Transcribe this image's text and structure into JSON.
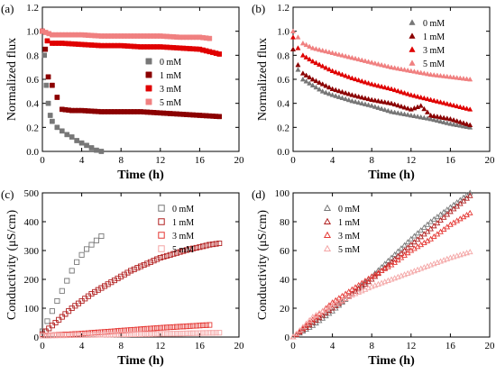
{
  "chart_data": [
    {
      "panel_label": "(a)",
      "type": "scatter",
      "marker": "square",
      "xlabel": "Time (h)",
      "ylabel": "Normalized flux",
      "xlim": [
        0,
        20
      ],
      "ylim": [
        0,
        1.2
      ],
      "xticks": [
        "0",
        "4",
        "8",
        "12",
        "16",
        "20"
      ],
      "yticks": [
        "0.0",
        "0.2",
        "0.4",
        "0.6",
        "0.8",
        "1.0",
        "1.2"
      ],
      "legend_placement": "right",
      "series": [
        {
          "name": "0 mM",
          "color": "#777777",
          "x": [
            0,
            0.2,
            0.4,
            0.6,
            0.8,
            1,
            1.5,
            2,
            2.5,
            3,
            3.5,
            4,
            4.5,
            5,
            5.5,
            6
          ],
          "y": [
            1.0,
            0.8,
            0.55,
            0.4,
            0.3,
            0.25,
            0.2,
            0.17,
            0.14,
            0.12,
            0.09,
            0.07,
            0.05,
            0.03,
            0.01,
            0.0
          ]
        },
        {
          "name": "1 mM",
          "color": "#8b0000",
          "x": [
            0,
            0.3,
            0.6,
            1,
            1.5,
            2,
            3,
            4,
            6,
            8,
            10,
            12,
            14,
            16,
            18
          ],
          "y": [
            1.0,
            0.85,
            0.62,
            0.55,
            0.45,
            0.35,
            0.34,
            0.34,
            0.33,
            0.33,
            0.33,
            0.32,
            0.31,
            0.3,
            0.29
          ]
        },
        {
          "name": "3 mM",
          "color": "#e00000",
          "x": [
            0,
            0.5,
            1,
            2,
            4,
            6,
            8,
            10,
            12,
            14,
            16,
            17,
            18
          ],
          "y": [
            1.0,
            0.92,
            0.9,
            0.9,
            0.89,
            0.88,
            0.88,
            0.87,
            0.87,
            0.86,
            0.85,
            0.83,
            0.81
          ]
        },
        {
          "name": "5 mM",
          "color": "#f08080",
          "x": [
            0,
            1,
            2,
            4,
            6,
            8,
            10,
            12,
            14,
            16,
            17
          ],
          "y": [
            1.0,
            0.97,
            0.97,
            0.97,
            0.96,
            0.96,
            0.96,
            0.96,
            0.95,
            0.95,
            0.94
          ]
        }
      ]
    },
    {
      "panel_label": "(b)",
      "type": "scatter",
      "marker": "triangle",
      "xlabel": "Time (h)",
      "ylabel": "Normalized flux",
      "xlim": [
        0,
        20
      ],
      "ylim": [
        0,
        1.2
      ],
      "xticks": [
        "0",
        "4",
        "8",
        "12",
        "16",
        "20"
      ],
      "yticks": [
        "0.0",
        "0.2",
        "0.4",
        "0.6",
        "0.8",
        "1.0",
        "1.2"
      ],
      "legend_placement": "top-right",
      "series": [
        {
          "name": "0 mM",
          "color": "#777777",
          "x": [
            0,
            0.5,
            1,
            2,
            3,
            4,
            6,
            8,
            10,
            12,
            14,
            16,
            18
          ],
          "y": [
            0.85,
            0.68,
            0.6,
            0.55,
            0.5,
            0.47,
            0.42,
            0.38,
            0.33,
            0.3,
            0.27,
            0.23,
            0.2
          ]
        },
        {
          "name": "1 mM",
          "color": "#8b0000",
          "x": [
            0,
            0.5,
            1,
            2,
            3,
            4,
            6,
            8,
            10,
            12,
            13,
            14,
            16,
            18
          ],
          "y": [
            0.85,
            0.72,
            0.65,
            0.6,
            0.56,
            0.52,
            0.47,
            0.43,
            0.4,
            0.35,
            0.38,
            0.3,
            0.27,
            0.22
          ]
        },
        {
          "name": "3 mM",
          "color": "#e00000",
          "x": [
            0,
            0.5,
            1,
            2,
            4,
            6,
            8,
            10,
            12,
            14,
            16,
            18
          ],
          "y": [
            0.95,
            0.86,
            0.8,
            0.75,
            0.67,
            0.61,
            0.56,
            0.52,
            0.47,
            0.43,
            0.39,
            0.35
          ]
        },
        {
          "name": "5 mM",
          "color": "#f08080",
          "x": [
            0,
            0.5,
            1,
            2,
            4,
            6,
            8,
            10,
            12,
            14,
            16,
            18
          ],
          "y": [
            1.0,
            0.95,
            0.9,
            0.86,
            0.82,
            0.78,
            0.74,
            0.7,
            0.67,
            0.64,
            0.62,
            0.6
          ]
        }
      ]
    },
    {
      "panel_label": "(c)",
      "type": "scatter",
      "marker": "open-square",
      "xlabel": "Time (h)",
      "ylabel": "Conductivity (μS/cm)",
      "xlim": [
        0,
        20
      ],
      "ylim": [
        0,
        500
      ],
      "xticks": [
        "0",
        "4",
        "8",
        "12",
        "16",
        "20"
      ],
      "yticks": [
        "0",
        "100",
        "200",
        "300",
        "400",
        "500"
      ],
      "legend_placement": "top-right",
      "series": [
        {
          "name": "0 mM",
          "color": "#777777",
          "x": [
            0,
            0.5,
            1,
            1.5,
            2,
            2.5,
            3,
            3.5,
            4,
            4.5,
            5,
            5.5,
            6
          ],
          "y": [
            20,
            55,
            90,
            125,
            160,
            195,
            230,
            260,
            285,
            305,
            320,
            335,
            350
          ]
        },
        {
          "name": "1 mM",
          "color": "#b22222",
          "x": [
            0,
            1,
            2,
            3,
            4,
            5,
            6,
            7,
            8,
            9,
            10,
            11,
            12,
            13,
            14,
            15,
            16,
            17,
            18
          ],
          "y": [
            10,
            40,
            70,
            100,
            125,
            150,
            170,
            190,
            210,
            230,
            245,
            260,
            275,
            285,
            295,
            305,
            312,
            320,
            325
          ]
        },
        {
          "name": "3 mM",
          "color": "#e53935",
          "x": [
            0,
            2,
            4,
            6,
            8,
            10,
            12,
            14,
            16,
            17
          ],
          "y": [
            5,
            8,
            12,
            17,
            22,
            27,
            32,
            36,
            40,
            42
          ]
        },
        {
          "name": "5 mM",
          "color": "#f4a6a6",
          "x": [
            0,
            2,
            4,
            6,
            8,
            10,
            12,
            14,
            16,
            18
          ],
          "y": [
            5,
            6,
            7,
            8,
            9,
            10,
            11,
            12,
            14,
            15
          ]
        }
      ]
    },
    {
      "panel_label": "(d)",
      "type": "scatter",
      "marker": "open-triangle",
      "xlabel": "Time (h)",
      "ylabel": "Conductivity (μS/cm)",
      "xlim": [
        0,
        20
      ],
      "ylim": [
        0,
        100
      ],
      "xticks": [
        "0",
        "4",
        "8",
        "12",
        "16",
        "20"
      ],
      "yticks": [
        "0",
        "20",
        "40",
        "60",
        "80",
        "100"
      ],
      "legend_placement": "top-left",
      "series": [
        {
          "name": "0 mM",
          "color": "#777777",
          "x": [
            0,
            2,
            4,
            6,
            8,
            10,
            12,
            14,
            16,
            18
          ],
          "y": [
            0,
            8,
            18,
            30,
            42,
            55,
            68,
            80,
            90,
            100
          ]
        },
        {
          "name": "1 mM",
          "color": "#b22222",
          "x": [
            0,
            2,
            4,
            6,
            8,
            10,
            12,
            14,
            16,
            18
          ],
          "y": [
            0,
            10,
            20,
            30,
            40,
            52,
            64,
            75,
            87,
            98
          ]
        },
        {
          "name": "3 mM",
          "color": "#e53935",
          "x": [
            0,
            2,
            4,
            6,
            8,
            10,
            12,
            14,
            16,
            18
          ],
          "y": [
            0,
            12,
            24,
            33,
            42,
            50,
            60,
            68,
            78,
            86
          ]
        },
        {
          "name": "5 mM",
          "color": "#f4a6a6",
          "x": [
            0,
            2,
            4,
            6,
            8,
            10,
            12,
            14,
            16,
            18
          ],
          "y": [
            0,
            14,
            22,
            29,
            35,
            40,
            45,
            50,
            55,
            59
          ]
        }
      ]
    }
  ]
}
